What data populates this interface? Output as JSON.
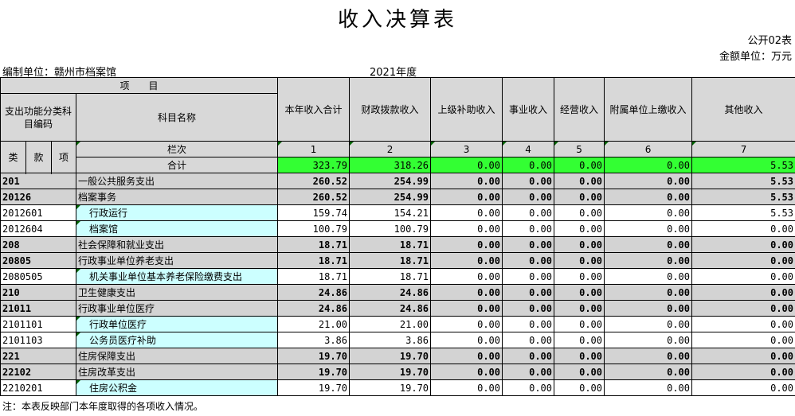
{
  "title": "收入决算表",
  "form_code": "公开02表",
  "amount_unit": "金额单位：万元",
  "org_unit": "编制单位：赣州市档案馆",
  "year": "2021年度",
  "headers": {
    "project": "项　　目",
    "func_code": "支出功能分类科目编码",
    "subject_name": "科目名称",
    "lei": "类",
    "kuan": "款",
    "xiang": "项",
    "row_seq": "栏次",
    "columns": [
      "本年收入合计",
      "财政拨款收入",
      "上级补助收入",
      "事业收入",
      "经营收入",
      "附属单位上缴收入",
      "其他收入"
    ],
    "col_numbers": [
      "1",
      "2",
      "3",
      "4",
      "5",
      "6",
      "7"
    ]
  },
  "total": {
    "label": "合计",
    "values": [
      "323.79",
      "318.26",
      "0.00",
      "0.00",
      "0.00",
      "0.00",
      "5.53"
    ]
  },
  "rows": [
    {
      "code": "201",
      "name": "一般公共服务支出",
      "values": [
        "260.52",
        "254.99",
        "0.00",
        "0.00",
        "0.00",
        "0.00",
        "5.53"
      ]
    },
    {
      "code": "20126",
      "name": "档案事务",
      "values": [
        "260.52",
        "254.99",
        "0.00",
        "0.00",
        "0.00",
        "0.00",
        "5.53"
      ]
    },
    {
      "code": "2012601",
      "name": "行政运行",
      "values": [
        "159.74",
        "154.21",
        "0.00",
        "0.00",
        "0.00",
        "0.00",
        "5.53"
      ]
    },
    {
      "code": "2012604",
      "name": "档案馆",
      "values": [
        "100.79",
        "100.79",
        "0.00",
        "0.00",
        "0.00",
        "0.00",
        "0.00"
      ]
    },
    {
      "code": "208",
      "name": "社会保障和就业支出",
      "values": [
        "18.71",
        "18.71",
        "0.00",
        "0.00",
        "0.00",
        "0.00",
        "0.00"
      ]
    },
    {
      "code": "20805",
      "name": "行政事业单位养老支出",
      "values": [
        "18.71",
        "18.71",
        "0.00",
        "0.00",
        "0.00",
        "0.00",
        "0.00"
      ]
    },
    {
      "code": "2080505",
      "name": "机关事业单位基本养老保险缴费支出",
      "values": [
        "18.71",
        "18.71",
        "0.00",
        "0.00",
        "0.00",
        "0.00",
        "0.00"
      ]
    },
    {
      "code": "210",
      "name": "卫生健康支出",
      "values": [
        "24.86",
        "24.86",
        "0.00",
        "0.00",
        "0.00",
        "0.00",
        "0.00"
      ]
    },
    {
      "code": "21011",
      "name": "行政事业单位医疗",
      "values": [
        "24.86",
        "24.86",
        "0.00",
        "0.00",
        "0.00",
        "0.00",
        "0.00"
      ]
    },
    {
      "code": "2101101",
      "name": "行政单位医疗",
      "values": [
        "21.00",
        "21.00",
        "0.00",
        "0.00",
        "0.00",
        "0.00",
        "0.00"
      ]
    },
    {
      "code": "2101103",
      "name": "公务员医疗补助",
      "values": [
        "3.86",
        "3.86",
        "0.00",
        "0.00",
        "0.00",
        "0.00",
        "0.00"
      ]
    },
    {
      "code": "221",
      "name": "住房保障支出",
      "values": [
        "19.70",
        "19.70",
        "0.00",
        "0.00",
        "0.00",
        "0.00",
        "0.00"
      ]
    },
    {
      "code": "22102",
      "name": "住房改革支出",
      "values": [
        "19.70",
        "19.70",
        "0.00",
        "0.00",
        "0.00",
        "0.00",
        "0.00"
      ]
    },
    {
      "code": "2210201",
      "name": "住房公积金",
      "values": [
        "19.70",
        "19.70",
        "0.00",
        "0.00",
        "0.00",
        "0.00",
        "0.00"
      ]
    }
  ],
  "note": "注：本表反映部门本年度取得的各项收入情况。"
}
